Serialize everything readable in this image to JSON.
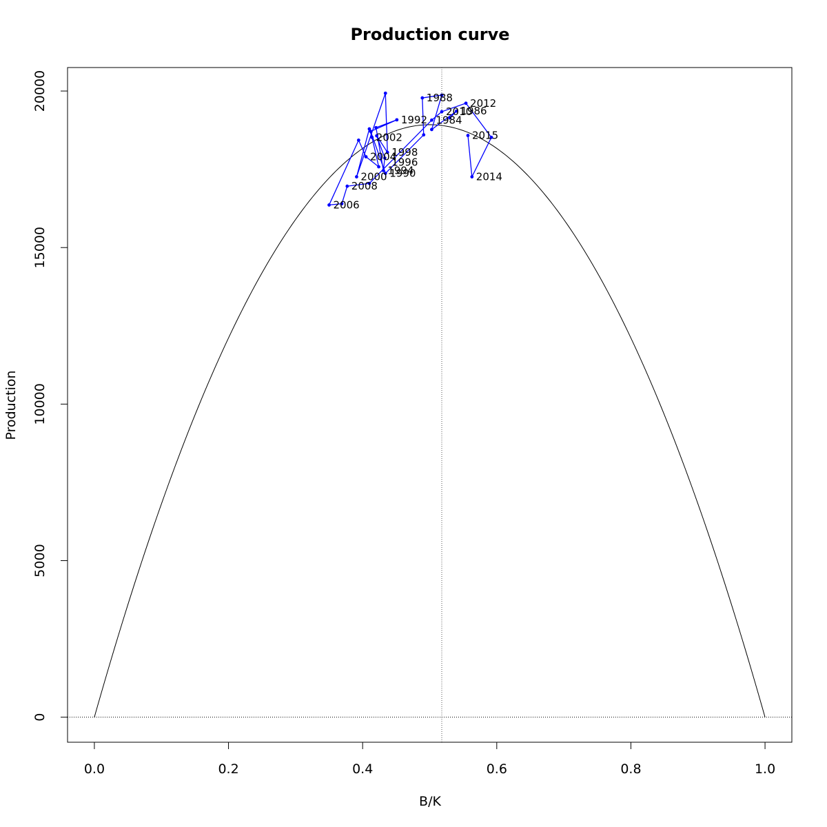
{
  "chart_data": {
    "type": "line",
    "title": "Production curve",
    "xlabel": "B/K",
    "ylabel": "Production",
    "xlim": [
      -0.04,
      1.04
    ],
    "ylim": [
      -800,
      20750
    ],
    "x_ticks": [
      0.0,
      0.2,
      0.4,
      0.6,
      0.8,
      1.0
    ],
    "x_tick_labels": [
      "0.0",
      "0.2",
      "0.4",
      "0.6",
      "0.8",
      "1.0"
    ],
    "y_ticks": [
      0,
      5000,
      10000,
      15000,
      20000
    ],
    "y_tick_labels": [
      "0",
      "5000",
      "10000",
      "15000",
      "20000"
    ],
    "grid": false,
    "reference_lines": {
      "vertical_x": 0.518,
      "horizontal_y": 0
    },
    "curve": {
      "shape": "parabola",
      "x_range": [
        0.0,
        1.0
      ],
      "peak_x": 0.518,
      "peak_y": 18900,
      "color": "#000000"
    },
    "series": [
      {
        "color": "#0000ff",
        "points": [
          {
            "x": 0.53,
            "y": 19140
          },
          {
            "x": 0.54,
            "y": 19360
          },
          {
            "x": 0.503,
            "y": 18770
          },
          {
            "x": 0.518,
            "y": 19870
          },
          {
            "x": 0.489,
            "y": 19780
          },
          {
            "x": 0.491,
            "y": 18600
          },
          {
            "x": 0.434,
            "y": 17370
          },
          {
            "x": 0.412,
            "y": 18710
          },
          {
            "x": 0.451,
            "y": 19080
          },
          {
            "x": 0.42,
            "y": 18830
          },
          {
            "x": 0.431,
            "y": 17460
          },
          {
            "x": 0.433,
            "y": 17860
          },
          {
            "x": 0.421,
            "y": 18570
          },
          {
            "x": 0.437,
            "y": 18040
          },
          {
            "x": 0.434,
            "y": 19930
          },
          {
            "x": 0.391,
            "y": 17260
          },
          {
            "x": 0.41,
            "y": 18790
          },
          {
            "x": 0.414,
            "y": 18520
          },
          {
            "x": 0.424,
            "y": 17580
          },
          {
            "x": 0.405,
            "y": 17900
          },
          {
            "x": 0.394,
            "y": 18430
          },
          {
            "x": 0.35,
            "y": 16360
          },
          {
            "x": 0.369,
            "y": 16400
          },
          {
            "x": 0.377,
            "y": 16960
          },
          {
            "x": 0.41,
            "y": 17050
          },
          {
            "x": 0.503,
            "y": 19070
          },
          {
            "x": 0.518,
            "y": 19340
          },
          {
            "x": 0.554,
            "y": 19610
          },
          {
            "x": 0.592,
            "y": 18520
          },
          {
            "x": 0.563,
            "y": 17260
          },
          {
            "x": 0.557,
            "y": 18580
          }
        ],
        "labels": [
          {
            "text": "1984",
            "x": 0.503,
            "y": 19070
          },
          {
            "text": "1986",
            "x": 0.54,
            "y": 19360
          },
          {
            "text": "1988",
            "x": 0.489,
            "y": 19780
          },
          {
            "text": "1990",
            "x": 0.434,
            "y": 17370
          },
          {
            "text": "1992",
            "x": 0.451,
            "y": 19080
          },
          {
            "text": "1994",
            "x": 0.431,
            "y": 17460
          },
          {
            "text": "1996",
            "x": 0.437,
            "y": 17720
          },
          {
            "text": "1998",
            "x": 0.437,
            "y": 18040
          },
          {
            "text": "2000",
            "x": 0.391,
            "y": 17260
          },
          {
            "text": "2002",
            "x": 0.414,
            "y": 18520
          },
          {
            "text": "2004",
            "x": 0.405,
            "y": 17900
          },
          {
            "text": "2006",
            "x": 0.35,
            "y": 16360
          },
          {
            "text": "2008",
            "x": 0.377,
            "y": 16960
          },
          {
            "text": "2010",
            "x": 0.518,
            "y": 19340
          },
          {
            "text": "2012",
            "x": 0.554,
            "y": 19610
          },
          {
            "text": "2014",
            "x": 0.563,
            "y": 17260
          },
          {
            "text": "2015",
            "x": 0.557,
            "y": 18580
          }
        ]
      }
    ]
  }
}
